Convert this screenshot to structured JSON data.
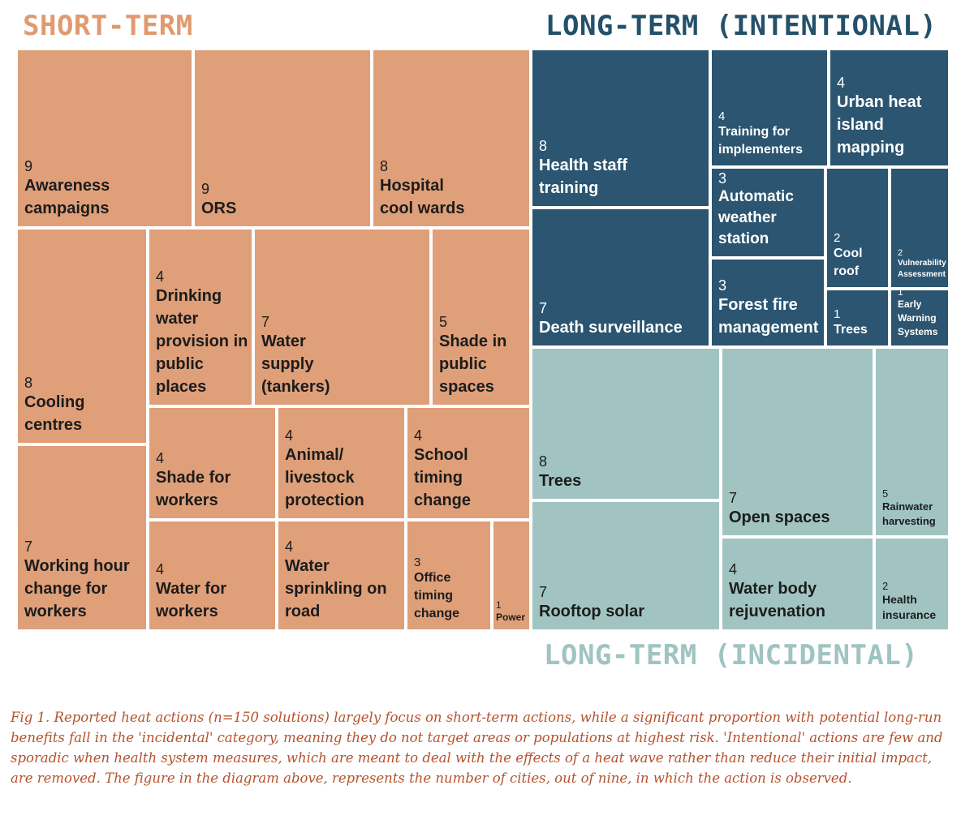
{
  "chart_data": {
    "type": "treemap",
    "value_meaning": "number of cities, out of nine",
    "groups": [
      {
        "label": "SHORT-TERM",
        "color": "#df9f79",
        "text_color": "#1c1c1c",
        "items": [
          {
            "label": "Awareness campaigns",
            "value": 9
          },
          {
            "label": "ORS",
            "value": 9
          },
          {
            "label": "Hospital cool wards",
            "value": 8
          },
          {
            "label": "Cooling centres",
            "value": 8
          },
          {
            "label": "Drinking water provision in public places",
            "value": 4
          },
          {
            "label": "Water supply (tankers)",
            "value": 7
          },
          {
            "label": "Shade in public spaces",
            "value": 5
          },
          {
            "label": "Shade for workers",
            "value": 4
          },
          {
            "label": "Animal/ livestock protection",
            "value": 4
          },
          {
            "label": "School timing change",
            "value": 4
          },
          {
            "label": "Working hour change for workers",
            "value": 7
          },
          {
            "label": "Water for workers",
            "value": 4
          },
          {
            "label": "Water sprinkling on road",
            "value": 4
          },
          {
            "label": "Office timing change",
            "value": 3
          },
          {
            "label": "Power",
            "value": 1
          }
        ]
      },
      {
        "label": "LONG-TERM (INTENTIONAL)",
        "color": "#2b5570",
        "text_color": "#ffffff",
        "items": [
          {
            "label": "Health staff training",
            "value": 8
          },
          {
            "label": "Training for implementers",
            "value": 4
          },
          {
            "label": "Urban heat island mapping",
            "value": 4
          },
          {
            "label": "Automatic weather station",
            "value": 3
          },
          {
            "label": "Cool roof",
            "value": 2
          },
          {
            "label": "Vulnerability Assessment",
            "value": 2
          },
          {
            "label": "Death surveillance",
            "value": 7
          },
          {
            "label": "Forest fire management",
            "value": 3
          },
          {
            "label": "Trees",
            "value": 1
          },
          {
            "label": "Early Warning Systems",
            "value": 1
          }
        ]
      },
      {
        "label": "LONG-TERM (INCIDENTAL)",
        "color": "#a1c4c2",
        "text_color": "#1c1c1c",
        "items": [
          {
            "label": "Trees",
            "value": 8
          },
          {
            "label": "Open spaces",
            "value": 7
          },
          {
            "label": "Rainwater harvesting",
            "value": 5
          },
          {
            "label": "Rooftop solar",
            "value": 7
          },
          {
            "label": "Water body rejuvenation",
            "value": 4
          },
          {
            "label": "Health insurance",
            "value": 2
          }
        ]
      }
    ]
  },
  "caption": "Fig 1. Reported heat actions (n=150 solutions) largely focus on short-term actions, while a significant proportion with potential long-run benefits fall in the 'incidental' category, meaning they do not target areas or populations at highest risk. 'Intentional' actions are few and sporadic when health system measures, which are meant to deal with the effects of a heat wave rather than reduce their initial impact, are removed. The figure in the diagram above, represents the number of cities, out of nine, in which the action is observed."
}
